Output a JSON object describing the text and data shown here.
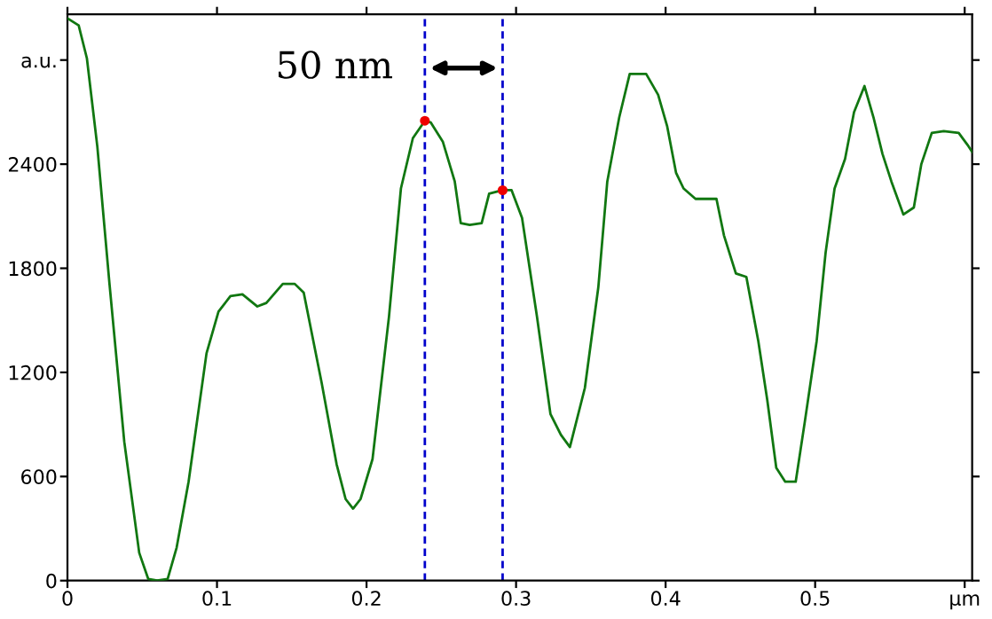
{
  "chart_data": {
    "type": "line",
    "annotations": [
      "50 nm"
    ],
    "xlim": [
      0,
      0.605
    ],
    "xticks": [
      0,
      0.1,
      0.2,
      0.3,
      0.4,
      0.5,
      {
        "value": 0.6,
        "label": "μm"
      }
    ],
    "ylim": [
      0,
      3264
    ],
    "yticks": [
      0,
      600,
      1200,
      1800,
      2400,
      {
        "value": 3000,
        "label": "a.u."
      }
    ],
    "grid": false,
    "legend": false,
    "ref_lines": [
      {
        "axis": "x",
        "value": 0.239,
        "color": "#0000cc",
        "line_style": "dashed"
      },
      {
        "axis": "x",
        "value": 0.291,
        "color": "#0000cc",
        "line_style": "dashed"
      }
    ],
    "series": [
      {
        "color": "#117711",
        "marker": "none",
        "line_style": "solid",
        "x": [
          0,
          0.0075,
          0.013,
          0.02,
          0.028,
          0.038,
          0.048,
          0.054,
          0.06,
          0.067,
          0.073,
          0.081,
          0.093,
          0.101,
          0.109,
          0.117,
          0.127,
          0.133,
          0.144,
          0.152,
          0.158,
          0.17,
          0.18,
          0.186,
          0.191,
          0.196,
          0.204,
          0.215,
          0.223,
          0.231,
          0.239,
          0.243,
          0.251,
          0.259,
          0.263,
          0.269,
          0.277,
          0.282,
          0.291,
          0.297,
          0.304,
          0.314,
          0.323,
          0.33,
          0.336,
          0.346,
          0.355,
          0.361,
          0.369,
          0.376,
          0.387,
          0.395,
          0.401,
          0.407,
          0.412,
          0.42,
          0.434,
          0.439,
          0.447,
          0.454,
          0.462,
          0.468,
          0.474,
          0.48,
          0.487,
          0.493,
          0.501,
          0.507,
          0.513,
          0.52,
          0.526,
          0.533,
          0.539,
          0.545,
          0.551,
          0.559,
          0.566,
          0.571,
          0.578,
          0.586,
          0.596,
          0.602,
          0.605
        ],
        "values": [
          3240,
          3200,
          3010,
          2500,
          1720,
          800,
          160,
          10,
          0,
          10,
          190,
          570,
          1310,
          1550,
          1640,
          1650,
          1580,
          1600,
          1710,
          1710,
          1660,
          1140,
          670,
          470,
          415,
          470,
          700,
          1520,
          2260,
          2550,
          2650,
          2640,
          2530,
          2300,
          2060,
          2050,
          2060,
          2230,
          2250,
          2250,
          2090,
          1520,
          960,
          840,
          770,
          1110,
          1690,
          2300,
          2670,
          2920,
          2920,
          2800,
          2620,
          2350,
          2260,
          2200,
          2200,
          1990,
          1770,
          1750,
          1380,
          1040,
          650,
          570,
          570,
          910,
          1380,
          1890,
          2260,
          2430,
          2700,
          2850,
          2670,
          2460,
          2300,
          2110,
          2150,
          2400,
          2580,
          2590,
          2580,
          2510,
          2470
        ]
      },
      {
        "type": "scatter",
        "color": "#ee0000",
        "marker": "circle",
        "x": [
          0.239,
          0.291
        ],
        "values": [
          2650,
          2250
        ]
      }
    ]
  }
}
